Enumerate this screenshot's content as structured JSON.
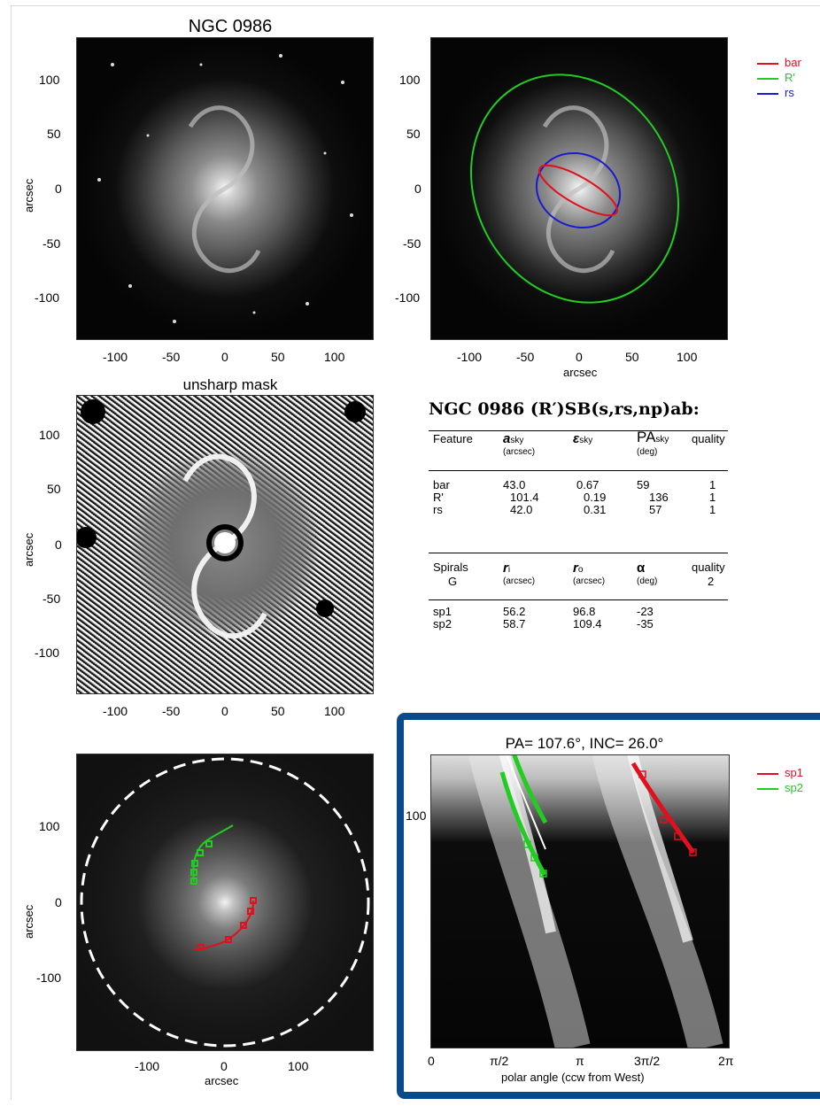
{
  "panel1": {
    "title": "NGC 0986",
    "ylabel": "arcsec",
    "yticks": [
      "100",
      "50",
      "0",
      "-50",
      "-100"
    ],
    "xticks": [
      "-100",
      "-50",
      "0",
      "50",
      "100"
    ]
  },
  "panel2": {
    "xlabel": "arcsec",
    "yticks": [
      "100",
      "50",
      "0",
      "-50",
      "-100"
    ],
    "xticks": [
      "-100",
      "-50",
      "0",
      "50",
      "100"
    ],
    "legend": [
      {
        "label": "bar",
        "color": "#e0101e"
      },
      {
        "label": "R'",
        "color": "#22cc22"
      },
      {
        "label": "rs",
        "color": "#1a1ad0"
      }
    ]
  },
  "panel3": {
    "title": "unsharp mask",
    "ylabel": "arcsec",
    "yticks": [
      "100",
      "50",
      "0",
      "-50",
      "-100"
    ],
    "xticks": [
      "-100",
      "-50",
      "0",
      "50",
      "100"
    ]
  },
  "table": {
    "title": "NGC 0986  (R′)SB(s,rs,np)ab:",
    "features_header": {
      "c1": "Feature",
      "c2": "a",
      "c2_sub": "sky",
      "c2_unit": "(arcsec)",
      "c3": "ε",
      "c3_sub": "sky",
      "c4": "PA",
      "c4_sub": "sky",
      "c4_unit": "(deg)",
      "c5": "quality"
    },
    "features": [
      {
        "name": "bar",
        "a": "43.0",
        "eps": "0.67",
        "pa": "59",
        "q": "1"
      },
      {
        "name": "R'",
        "a": "101.4",
        "eps": "0.19",
        "pa": "136",
        "q": "1"
      },
      {
        "name": "rs",
        "a": "42.0",
        "eps": "0.31",
        "pa": "57",
        "q": "1"
      }
    ],
    "spirals_header": {
      "c1": "Spirals",
      "c1b": "G",
      "c2": "r",
      "c2_sub": "i",
      "c2_unit": "(arcsec)",
      "c3": "r",
      "c3_sub": "o",
      "c3_unit": "(arcsec)",
      "c4": "α",
      "c4_unit": "(deg)",
      "c5": "quality",
      "c5b": "2"
    },
    "spirals": [
      {
        "name": "sp1",
        "ri": "56.2",
        "ro": "96.8",
        "alpha": "-23"
      },
      {
        "name": "sp2",
        "ri": "58.7",
        "ro": "109.4",
        "alpha": "-35"
      }
    ]
  },
  "panel4": {
    "xlabel": "arcsec",
    "ylabel": "arcsec",
    "yticks": [
      "100",
      "0",
      "-100"
    ],
    "xticks": [
      "-100",
      "0",
      "100"
    ]
  },
  "panel5": {
    "title": "PA= 107.6°, INC= 26.0°",
    "ytick": "100",
    "xticks": [
      "0",
      "π/2",
      "π",
      "3π/2",
      "2π"
    ],
    "xlabel": "polar angle (ccw from West)",
    "legend": [
      {
        "label": "sp1",
        "color": "#e0101e"
      },
      {
        "label": "sp2",
        "color": "#22cc22"
      }
    ]
  },
  "colors": {
    "frame": "#0b4a8a",
    "bar": "#e0101e",
    "Rprime": "#22cc22",
    "rs": "#1a1ad0"
  }
}
